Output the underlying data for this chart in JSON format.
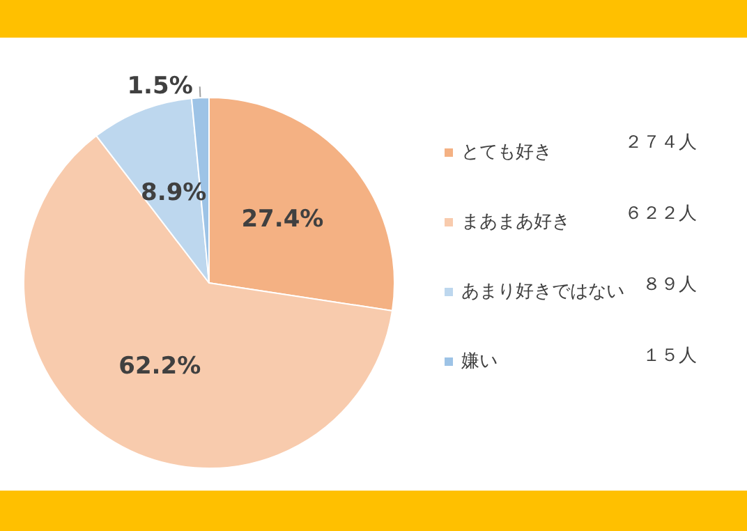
{
  "chart_data": {
    "type": "pie",
    "categories": [
      "とても好き",
      "まあまあ好き",
      "あまり好きではない",
      "嫌い"
    ],
    "values": [
      27.4,
      62.2,
      8.9,
      1.5
    ],
    "colors": [
      "#f4b183",
      "#f8cbad",
      "#bdd7ee",
      "#9dc3e6"
    ],
    "value_labels": [
      "27.4%",
      "62.2%",
      "8.9%",
      "1.5%"
    ],
    "annotations": [
      "２７４人",
      "６２２人",
      "８９人",
      "１５人"
    ],
    "legend": "right"
  }
}
